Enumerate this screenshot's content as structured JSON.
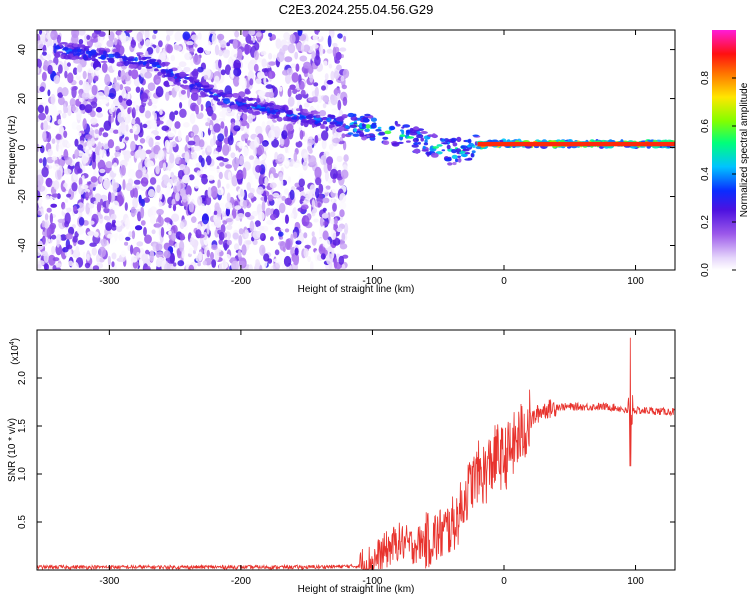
{
  "title": "C2E3.2024.255.04.56.G29",
  "colors": {
    "snr_line": "#e8332d",
    "background": "#ffffff",
    "axis": "#000000"
  },
  "chart_data": [
    {
      "type": "heatmap",
      "xlabel": "Height of straight line (km)",
      "ylabel": "Frequency (Hz)",
      "xlim": [
        -355,
        130
      ],
      "ylim": [
        -50,
        48
      ],
      "x_ticks": [
        "-300",
        "-200",
        "-100",
        "0",
        "100"
      ],
      "y_ticks": [
        "40",
        "20",
        "0",
        "-20",
        "-40"
      ],
      "colorbar": {
        "label": "Normalized spectral amplitude",
        "range": [
          0,
          1
        ],
        "ticks": [
          "0.0",
          "0.2",
          "0.4",
          "0.6",
          "0.8"
        ],
        "colormap": "rainbow (white-violet-purple-blue-cyan-green-yellow-orange-red-magenta)"
      },
      "features": {
        "noise_region_x": [
          -355,
          -120
        ],
        "noise_level": 0.15,
        "signal_ridge": [
          {
            "x": -340,
            "freq": 40
          },
          {
            "x": -270,
            "freq": 35
          },
          {
            "x": -215,
            "freq": 20
          },
          {
            "x": -150,
            "freq": 12
          },
          {
            "x": -120,
            "freq": 10
          },
          {
            "x": -100,
            "freq": 8
          },
          {
            "x": -80,
            "freq": 5
          },
          {
            "x": -60,
            "freq": 2
          },
          {
            "x": -40,
            "freq": -2
          },
          {
            "x": -20,
            "freq": 1
          },
          {
            "x": 0,
            "freq": 1.5
          },
          {
            "x": 50,
            "freq": 1.5
          },
          {
            "x": 100,
            "freq": 1.5
          },
          {
            "x": 130,
            "freq": 1.5
          }
        ]
      }
    },
    {
      "type": "line",
      "xlabel": "Height of straight line (km)",
      "ylabel": "SNR (10 * v/v)",
      "scale_label": "(x10",
      "scale_exp": "4",
      "scale_close": ")",
      "xlim": [
        -355,
        130
      ],
      "ylim": [
        0,
        2.5
      ],
      "x_ticks": [
        "-300",
        "-200",
        "-100",
        "0",
        "100"
      ],
      "y_ticks": [
        "0.5",
        "1.0",
        "1.5",
        "2.0"
      ],
      "series": [
        {
          "color": "#e8332d",
          "x": [
            -355,
            -300,
            -250,
            -200,
            -150,
            -110,
            -100,
            -90,
            -80,
            -70,
            -60,
            -50,
            -45,
            -40,
            -35,
            -30,
            -25,
            -20,
            -15,
            -10,
            -5,
            0,
            5,
            10,
            15,
            20,
            25,
            30,
            35,
            40,
            50,
            60,
            70,
            80,
            90,
            93,
            96,
            98,
            100,
            110,
            120,
            130
          ],
          "y": [
            0.03,
            0.03,
            0.03,
            0.03,
            0.03,
            0.04,
            0.08,
            0.2,
            0.3,
            0.25,
            0.3,
            0.35,
            0.4,
            0.45,
            0.55,
            0.75,
            0.9,
            1.0,
            1.0,
            1.1,
            1.2,
            1.15,
            1.25,
            1.35,
            1.45,
            1.55,
            1.62,
            1.67,
            1.68,
            1.7,
            1.7,
            1.7,
            1.7,
            1.7,
            1.68,
            1.65,
            1.6,
            1.68,
            1.66,
            1.66,
            1.65,
            1.65
          ]
        }
      ],
      "noise": [
        {
          "x_from": -355,
          "x_to": -110,
          "amp": 0.02
        },
        {
          "x_from": -110,
          "x_to": -60,
          "amp": 0.2
        },
        {
          "x_from": -60,
          "x_to": -20,
          "amp": 0.3
        },
        {
          "x_from": -20,
          "x_to": 20,
          "amp": 0.35
        },
        {
          "x_from": 20,
          "x_to": 40,
          "amp": 0.1
        },
        {
          "x_from": 40,
          "x_to": 130,
          "amp": 0.04
        }
      ],
      "spike": {
        "x": 96,
        "max": 2.42,
        "min": 1.08
      }
    }
  ]
}
